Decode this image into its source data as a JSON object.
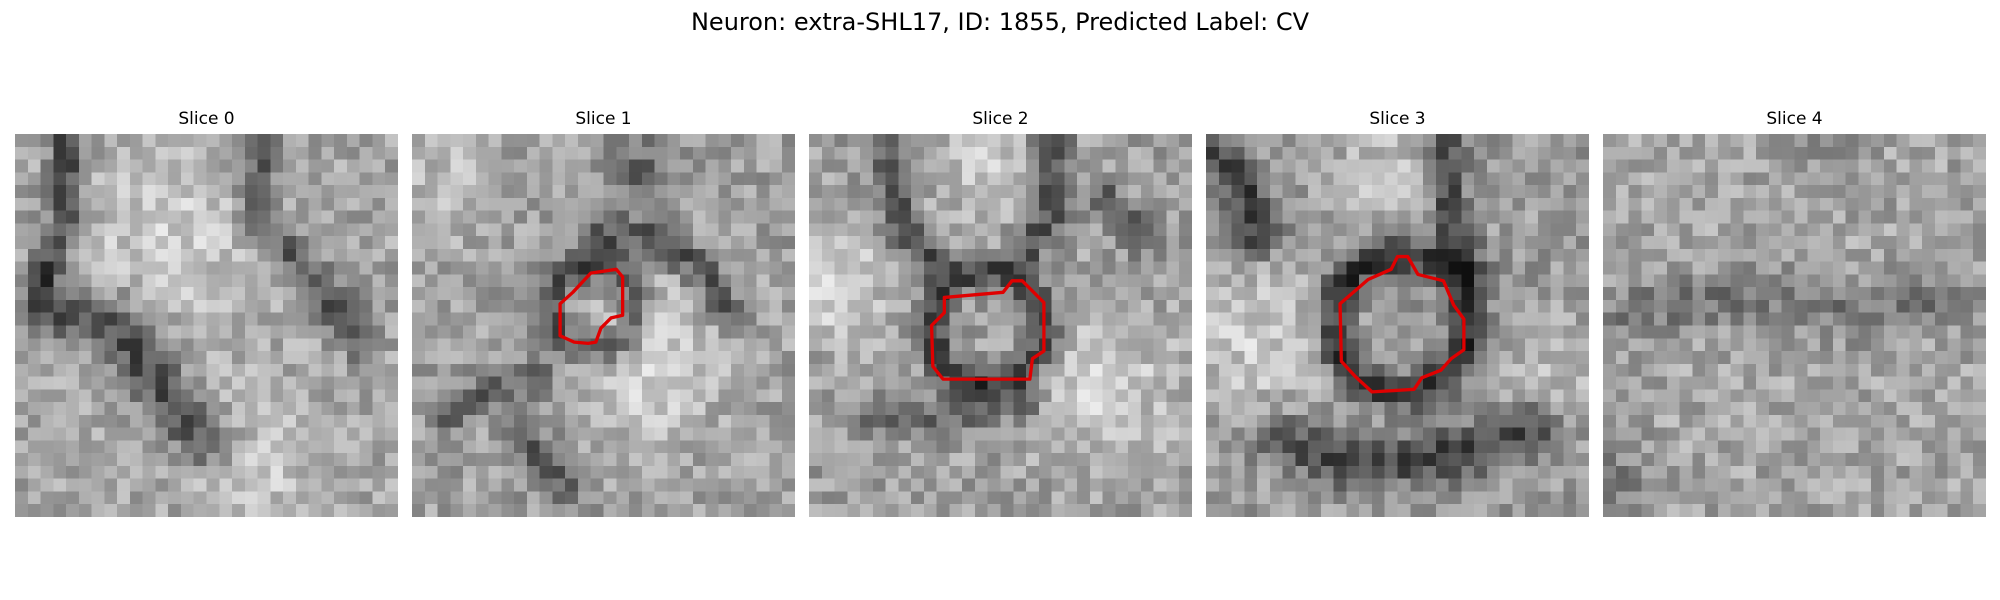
{
  "title": "Neuron: extra-SHL17, ID: 1855, Predicted Label: CV",
  "outline_color": "#e00000",
  "grid_size": 30,
  "panels": [
    {
      "label": "Slice 0",
      "has_outline": false,
      "texture": "Dark vertical band on the upper left and upper right, a large dark curved band across the lower left, lighter gray speckle elsewhere."
    },
    {
      "label": "Slice 1",
      "has_outline": true,
      "texture": "Dark ring-like band surrounding a small lighter patch near center-left, bright area lower right, dark blobs near top and bottom."
    },
    {
      "label": "Slice 2",
      "has_outline": true,
      "texture": "Dark circular membrane around a medium-gray interior at the center, dark vertical streaks at top, light regions at left and lower right."
    },
    {
      "label": "Slice 3",
      "has_outline": true,
      "texture": "Dark thick ring around a gray interior at the center, dark regions at top left and top right, dark band near the bottom."
    },
    {
      "label": "Slice 4",
      "has_outline": false,
      "texture": "Mostly uniform noisy gray speckle with a faint darker horizontal band near the middle."
    }
  ]
}
